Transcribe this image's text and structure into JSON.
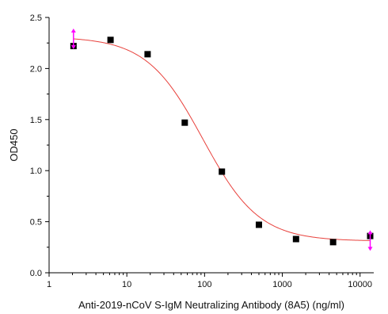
{
  "chart_data": {
    "type": "scatter",
    "title": "",
    "xlabel": "Anti-2019-nCoV S-IgM Neutralizing Antibody (8A5) (ng/ml)",
    "ylabel": "OD450",
    "x_scale": "log",
    "xlim": [
      1,
      15000
    ],
    "ylim": [
      0,
      2.5
    ],
    "x_ticks": [
      1,
      10,
      100,
      1000,
      10000
    ],
    "x_tick_labels": [
      "1",
      "10",
      "100",
      "1000",
      "10000"
    ],
    "y_ticks": [
      0,
      0.5,
      1.0,
      1.5,
      2.0,
      2.5
    ],
    "y_tick_labels": [
      "0.0",
      "0.5",
      "1.0",
      "1.5",
      "2.0",
      "2.5"
    ],
    "grid": false,
    "series": [
      {
        "marker": "square",
        "color": "#000000",
        "x": [
          2.06,
          6.17,
          18.5,
          55.6,
          167,
          500,
          1500,
          4500,
          13500
        ],
        "y": [
          2.22,
          2.28,
          2.14,
          1.47,
          0.99,
          0.47,
          0.33,
          0.3,
          0.36
        ]
      }
    ],
    "fit_curve": {
      "model": "4PL",
      "color": "#e8413c",
      "top": 2.31,
      "bottom": 0.31,
      "ec50": 95,
      "hill": 1.2,
      "x_range": [
        2.06,
        13500
      ]
    },
    "end_markers": {
      "color": "#ff00ff",
      "x": [
        2.06,
        13500
      ]
    }
  }
}
